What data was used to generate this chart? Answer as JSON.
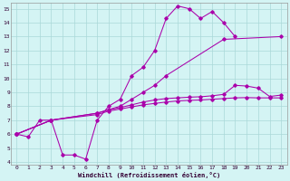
{
  "xlabel": "Windchill (Refroidissement éolien,°C)",
  "background_color": "#d4f4f4",
  "grid_color": "#aad8d8",
  "line_color": "#aa00aa",
  "xlim": [
    -0.5,
    23.5
  ],
  "ylim": [
    3.8,
    15.4
  ],
  "xticks": [
    0,
    1,
    2,
    3,
    4,
    5,
    6,
    7,
    8,
    9,
    10,
    11,
    12,
    13,
    14,
    15,
    16,
    17,
    18,
    19,
    20,
    21,
    22,
    23
  ],
  "yticks": [
    4,
    5,
    6,
    7,
    8,
    9,
    10,
    11,
    12,
    13,
    14,
    15
  ],
  "line1_x": [
    0,
    1,
    2,
    3,
    4,
    5,
    6,
    7,
    8,
    9,
    10,
    11,
    12,
    13,
    14,
    15,
    16,
    17,
    18,
    19
  ],
  "line1_y": [
    6.0,
    5.8,
    7.0,
    7.0,
    4.5,
    4.5,
    4.2,
    7.0,
    8.0,
    8.5,
    10.2,
    10.8,
    12.0,
    14.3,
    15.2,
    15.0,
    14.3,
    14.8,
    14.0,
    13.0
  ],
  "line2_x": [
    0,
    3,
    7,
    9,
    10,
    11,
    12,
    13,
    18,
    23
  ],
  "line2_y": [
    6.0,
    7.0,
    7.5,
    8.0,
    8.5,
    9.0,
    9.5,
    10.2,
    12.8,
    13.0
  ],
  "line3_x": [
    0,
    3,
    7,
    8,
    9,
    10,
    11,
    12,
    13,
    14,
    15,
    16,
    17,
    18,
    19,
    20,
    21,
    22,
    23
  ],
  "line3_y": [
    6.0,
    7.0,
    7.4,
    7.65,
    7.8,
    7.95,
    8.1,
    8.2,
    8.3,
    8.38,
    8.42,
    8.45,
    8.5,
    8.55,
    8.6,
    8.62,
    8.6,
    8.6,
    8.6
  ],
  "line4_x": [
    0,
    3,
    7,
    8,
    9,
    10,
    11,
    12,
    13,
    14,
    15,
    16,
    17,
    18,
    19,
    20,
    21,
    22,
    23
  ],
  "line4_y": [
    6.0,
    7.0,
    7.5,
    7.75,
    7.9,
    8.1,
    8.3,
    8.45,
    8.55,
    8.6,
    8.65,
    8.68,
    8.75,
    8.85,
    9.5,
    9.45,
    9.3,
    8.7,
    8.8
  ]
}
